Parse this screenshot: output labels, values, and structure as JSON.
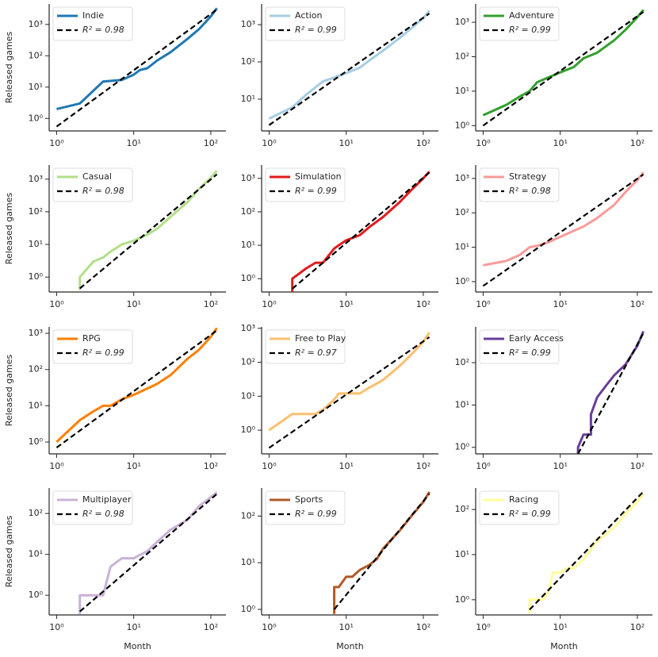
{
  "chart_data": [
    {
      "type": "line",
      "xscale": "log",
      "yscale": "log",
      "ylabel": "Released games",
      "xlim": [
        0.8,
        157
      ],
      "ylim": [
        0.4,
        4500
      ],
      "xticks": [
        {
          "value": 1,
          "label": "10⁰"
        },
        {
          "value": 10,
          "label": "10¹"
        },
        {
          "value": 100,
          "label": "10²"
        }
      ],
      "yticks": [
        {
          "value": 1,
          "label": "10⁰"
        },
        {
          "value": 10,
          "label": "10¹"
        },
        {
          "value": 100,
          "label": "10²"
        },
        {
          "value": 1000,
          "label": "10³"
        }
      ],
      "series": [
        {
          "name": "Indie",
          "color": "#1f78b4",
          "x": [
            1,
            2,
            4,
            7,
            10,
            12,
            15,
            20,
            30,
            50,
            70,
            100,
            120
          ],
          "values": [
            2,
            3,
            15,
            17,
            25,
            35,
            40,
            70,
            130,
            350,
            700,
            1800,
            3300
          ]
        },
        {
          "name": "R² = 0.98",
          "color": "#000000",
          "linestyle": "dashed",
          "x": [
            1,
            120
          ],
          "values": [
            0.55,
            3000
          ]
        }
      ]
    },
    {
      "type": "line",
      "xscale": "log",
      "yscale": "log",
      "xlim": [
        0.8,
        157
      ],
      "ylim": [
        1.4,
        3600
      ],
      "xticks": [
        {
          "value": 1,
          "label": "10⁰"
        },
        {
          "value": 10,
          "label": "10¹"
        },
        {
          "value": 100,
          "label": "10²"
        }
      ],
      "yticks": [
        {
          "value": 10,
          "label": "10¹"
        },
        {
          "value": 100,
          "label": "10²"
        },
        {
          "value": 1000,
          "label": "10³"
        }
      ],
      "series": [
        {
          "name": "Action",
          "color": "#a6cee3",
          "x": [
            1,
            2,
            3,
            5,
            7,
            10,
            15,
            20,
            30,
            50,
            70,
            100,
            120
          ],
          "values": [
            3,
            6,
            13,
            30,
            38,
            50,
            70,
            110,
            200,
            450,
            800,
            1500,
            2400
          ]
        },
        {
          "name": "R² = 0.99",
          "color": "#000000",
          "linestyle": "dashed",
          "x": [
            1,
            120
          ],
          "values": [
            2,
            2000
          ]
        }
      ]
    },
    {
      "type": "line",
      "xscale": "log",
      "yscale": "log",
      "xlim": [
        0.8,
        157
      ],
      "ylim": [
        0.7,
        3400
      ],
      "xticks": [
        {
          "value": 1,
          "label": "10⁰"
        },
        {
          "value": 10,
          "label": "10¹"
        },
        {
          "value": 100,
          "label": "10²"
        }
      ],
      "yticks": [
        {
          "value": 1,
          "label": "10⁰"
        },
        {
          "value": 10,
          "label": "10¹"
        },
        {
          "value": 100,
          "label": "10²"
        },
        {
          "value": 1000,
          "label": "10³"
        }
      ],
      "series": [
        {
          "name": "Adventure",
          "color": "#33a02c",
          "x": [
            1,
            2,
            3,
            4,
            5,
            7,
            10,
            15,
            20,
            30,
            50,
            70,
            100,
            120
          ],
          "values": [
            2,
            4,
            7,
            10,
            18,
            25,
            35,
            50,
            90,
            130,
            300,
            600,
            1400,
            2300
          ]
        },
        {
          "name": "R² = 0.99",
          "color": "#000000",
          "linestyle": "dashed",
          "x": [
            1,
            120
          ],
          "values": [
            1,
            2000
          ]
        }
      ]
    },
    {
      "type": "line",
      "xscale": "log",
      "yscale": "log",
      "ylabel": "Released games",
      "xlim": [
        0.8,
        157
      ],
      "ylim": [
        0.35,
        2700
      ],
      "xticks": [
        {
          "value": 1,
          "label": "10⁰"
        },
        {
          "value": 10,
          "label": "10¹"
        },
        {
          "value": 100,
          "label": "10²"
        }
      ],
      "yticks": [
        {
          "value": 1,
          "label": "10⁰"
        },
        {
          "value": 10,
          "label": "10¹"
        },
        {
          "value": 100,
          "label": "10²"
        },
        {
          "value": 1000,
          "label": "10³"
        }
      ],
      "series": [
        {
          "name": "Casual",
          "color": "#b2df8a",
          "x": [
            2,
            2,
            3,
            4,
            5,
            7,
            10,
            15,
            20,
            30,
            50,
            70,
            100,
            120
          ],
          "values": [
            0.4,
            1,
            3,
            4,
            6,
            10,
            13,
            20,
            30,
            70,
            200,
            500,
            1100,
            1800
          ]
        },
        {
          "name": "R² = 0.98",
          "color": "#000000",
          "linestyle": "dashed",
          "x": [
            2,
            120
          ],
          "values": [
            0.45,
            1400
          ]
        }
      ]
    },
    {
      "type": "line",
      "xscale": "log",
      "yscale": "log",
      "xlim": [
        0.8,
        157
      ],
      "ylim": [
        0.4,
        2500
      ],
      "xticks": [
        {
          "value": 1,
          "label": "10⁰"
        },
        {
          "value": 10,
          "label": "10¹"
        },
        {
          "value": 100,
          "label": "10²"
        }
      ],
      "yticks": [
        {
          "value": 1,
          "label": "10⁰"
        },
        {
          "value": 10,
          "label": "10¹"
        },
        {
          "value": 100,
          "label": "10²"
        },
        {
          "value": 1000,
          "label": "10³"
        }
      ],
      "series": [
        {
          "name": "Simulation",
          "color": "#e31a1c",
          "x": [
            2,
            2,
            3,
            4,
            5,
            7,
            8,
            10,
            15,
            20,
            30,
            50,
            70,
            100,
            120
          ],
          "values": [
            0.4,
            1,
            2,
            3,
            3,
            8,
            10,
            14,
            20,
            35,
            70,
            200,
            450,
            1000,
            1600
          ]
        },
        {
          "name": "R² = 0.99",
          "color": "#000000",
          "linestyle": "dashed",
          "x": [
            2,
            120
          ],
          "values": [
            0.5,
            1500
          ]
        }
      ]
    },
    {
      "type": "line",
      "xscale": "log",
      "yscale": "log",
      "xlim": [
        0.8,
        157
      ],
      "ylim": [
        0.5,
        2450
      ],
      "xticks": [
        {
          "value": 1,
          "label": "10⁰"
        },
        {
          "value": 10,
          "label": "10¹"
        },
        {
          "value": 100,
          "label": "10²"
        }
      ],
      "yticks": [
        {
          "value": 1,
          "label": "10⁰"
        },
        {
          "value": 10,
          "label": "10¹"
        },
        {
          "value": 100,
          "label": "10²"
        },
        {
          "value": 1000,
          "label": "10³"
        }
      ],
      "series": [
        {
          "name": "Strategy",
          "color": "#fb9a99",
          "x": [
            1,
            2,
            3,
            4,
            5,
            7,
            10,
            15,
            20,
            30,
            50,
            70,
            100,
            120
          ],
          "values": [
            3,
            4,
            6,
            10,
            11,
            14,
            20,
            30,
            40,
            70,
            170,
            400,
            900,
            1500
          ]
        },
        {
          "name": "R² = 0.98",
          "color": "#000000",
          "linestyle": "dashed",
          "x": [
            1,
            120
          ],
          "values": [
            0.75,
            1300
          ]
        }
      ]
    },
    {
      "type": "line",
      "xscale": "log",
      "yscale": "log",
      "ylabel": "Released games",
      "xlim": [
        0.8,
        157
      ],
      "ylim": [
        0.47,
        1500
      ],
      "xticks": [
        {
          "value": 1,
          "label": "10⁰"
        },
        {
          "value": 10,
          "label": "10¹"
        },
        {
          "value": 100,
          "label": "10²"
        }
      ],
      "yticks": [
        {
          "value": 1,
          "label": "10⁰"
        },
        {
          "value": 10,
          "label": "10¹"
        },
        {
          "value": 100,
          "label": "10²"
        },
        {
          "value": 1000,
          "label": "10³"
        }
      ],
      "series": [
        {
          "name": "RPG",
          "color": "#ff7f00",
          "x": [
            1,
            2,
            3,
            4,
            5,
            7,
            10,
            15,
            20,
            30,
            50,
            70,
            100,
            120
          ],
          "values": [
            1,
            4,
            7,
            10,
            10,
            15,
            20,
            30,
            40,
            70,
            200,
            350,
            800,
            1400
          ]
        },
        {
          "name": "R² = 0.99",
          "color": "#000000",
          "linestyle": "dashed",
          "x": [
            1,
            120
          ],
          "values": [
            0.7,
            1200
          ]
        }
      ]
    },
    {
      "type": "line",
      "xscale": "log",
      "yscale": "log",
      "xlim": [
        0.8,
        157
      ],
      "ylim": [
        0.2,
        1100
      ],
      "xticks": [
        {
          "value": 1,
          "label": "10⁰"
        },
        {
          "value": 10,
          "label": "10¹"
        },
        {
          "value": 100,
          "label": "10²"
        }
      ],
      "yticks": [
        {
          "value": 1,
          "label": "10⁰"
        },
        {
          "value": 10,
          "label": "10¹"
        },
        {
          "value": 100,
          "label": "10²"
        },
        {
          "value": 1000,
          "label": "10³"
        }
      ],
      "series": [
        {
          "name": "Free to Play",
          "color": "#fdbf6f",
          "x": [
            1,
            2,
            3,
            4,
            5,
            7,
            8,
            10,
            15,
            20,
            30,
            50,
            70,
            100,
            120
          ],
          "values": [
            1,
            3,
            3,
            3,
            4,
            8,
            12,
            12,
            12,
            18,
            30,
            80,
            170,
            400,
            750
          ]
        },
        {
          "name": "R² = 0.97",
          "color": "#000000",
          "linestyle": "dashed",
          "x": [
            1,
            120
          ],
          "values": [
            0.3,
            550
          ]
        }
      ]
    },
    {
      "type": "line",
      "xscale": "log",
      "yscale": "log",
      "xlim": [
        0.8,
        157
      ],
      "ylim": [
        0.7,
        700
      ],
      "xticks": [
        {
          "value": 1,
          "label": "10⁰"
        },
        {
          "value": 10,
          "label": "10¹"
        },
        {
          "value": 100,
          "label": "10²"
        }
      ],
      "yticks": [
        {
          "value": 1,
          "label": "10⁰"
        },
        {
          "value": 10,
          "label": "10¹"
        },
        {
          "value": 100,
          "label": "10²"
        }
      ],
      "series": [
        {
          "name": "Early Access",
          "color": "#6a3d9a",
          "x": [
            17,
            17,
            20,
            20,
            22,
            25,
            25,
            30,
            40,
            50,
            70,
            100,
            120
          ],
          "values": [
            0.7,
            1,
            2,
            2,
            2,
            2,
            6,
            15,
            30,
            50,
            90,
            250,
            550
          ]
        },
        {
          "name": "R² = 0.99",
          "color": "#000000",
          "linestyle": "dashed",
          "x": [
            17,
            120
          ],
          "values": [
            0.7,
            500
          ]
        }
      ]
    },
    {
      "type": "line",
      "xscale": "log",
      "yscale": "log",
      "ylabel": "Released games",
      "xlabel": "Month",
      "xlim": [
        0.8,
        157
      ],
      "ylim": [
        0.33,
        420
      ],
      "xticks": [
        {
          "value": 1,
          "label": "10⁰"
        },
        {
          "value": 10,
          "label": "10¹"
        },
        {
          "value": 100,
          "label": "10²"
        }
      ],
      "yticks": [
        {
          "value": 1,
          "label": "10⁰"
        },
        {
          "value": 10,
          "label": "10¹"
        },
        {
          "value": 100,
          "label": "10²"
        }
      ],
      "series": [
        {
          "name": "Multiplayer",
          "color": "#cab2d6",
          "x": [
            2,
            2,
            4,
            5,
            7,
            8,
            10,
            15,
            20,
            30,
            50,
            70,
            100,
            120
          ],
          "values": [
            0.35,
            1,
            1,
            5,
            8,
            8,
            8,
            12,
            20,
            40,
            70,
            150,
            250,
            330
          ]
        },
        {
          "name": "R² = 0.98",
          "color": "#000000",
          "linestyle": "dashed",
          "x": [
            2,
            120
          ],
          "values": [
            0.4,
            300
          ]
        }
      ]
    },
    {
      "type": "line",
      "xscale": "log",
      "yscale": "log",
      "xlabel": "Month",
      "xlim": [
        0.8,
        157
      ],
      "ylim": [
        0.76,
        400
      ],
      "xticks": [
        {
          "value": 1,
          "label": "10⁰"
        },
        {
          "value": 10,
          "label": "10¹"
        },
        {
          "value": 100,
          "label": "10²"
        }
      ],
      "yticks": [
        {
          "value": 1,
          "label": "10⁰"
        },
        {
          "value": 10,
          "label": "10¹"
        },
        {
          "value": 100,
          "label": "10²"
        }
      ],
      "series": [
        {
          "name": "Sports",
          "color": "#b15928",
          "x": [
            7,
            7,
            8,
            10,
            12,
            15,
            20,
            25,
            30,
            50,
            70,
            100,
            120
          ],
          "values": [
            0.8,
            3,
            3,
            5,
            5,
            7,
            9,
            12,
            20,
            50,
            100,
            200,
            330
          ]
        },
        {
          "name": "R² = 0.99",
          "color": "#000000",
          "linestyle": "dashed",
          "x": [
            7,
            120
          ],
          "values": [
            1,
            300
          ]
        }
      ]
    },
    {
      "type": "line",
      "xscale": "log",
      "yscale": "log",
      "xlabel": "Month",
      "xlim": [
        0.8,
        157
      ],
      "ylim": [
        0.46,
        300
      ],
      "xticks": [
        {
          "value": 1,
          "label": "10⁰"
        },
        {
          "value": 10,
          "label": "10¹"
        },
        {
          "value": 100,
          "label": "10²"
        }
      ],
      "yticks": [
        {
          "value": 1,
          "label": "10⁰"
        },
        {
          "value": 10,
          "label": "10¹"
        },
        {
          "value": 100,
          "label": "10²"
        }
      ],
      "series": [
        {
          "name": "Racing",
          "color": "#ffff99",
          "x": [
            4,
            4,
            5,
            6,
            7,
            8,
            10,
            12,
            15,
            20,
            30,
            50,
            70,
            100,
            120
          ],
          "values": [
            0.5,
            1,
            1,
            1,
            1.5,
            4,
            4,
            5,
            5,
            8,
            20,
            40,
            80,
            150,
            220
          ]
        },
        {
          "name": "R² = 0.99",
          "color": "#000000",
          "linestyle": "dashed",
          "x": [
            4,
            120
          ],
          "values": [
            0.6,
            250
          ]
        }
      ]
    }
  ]
}
